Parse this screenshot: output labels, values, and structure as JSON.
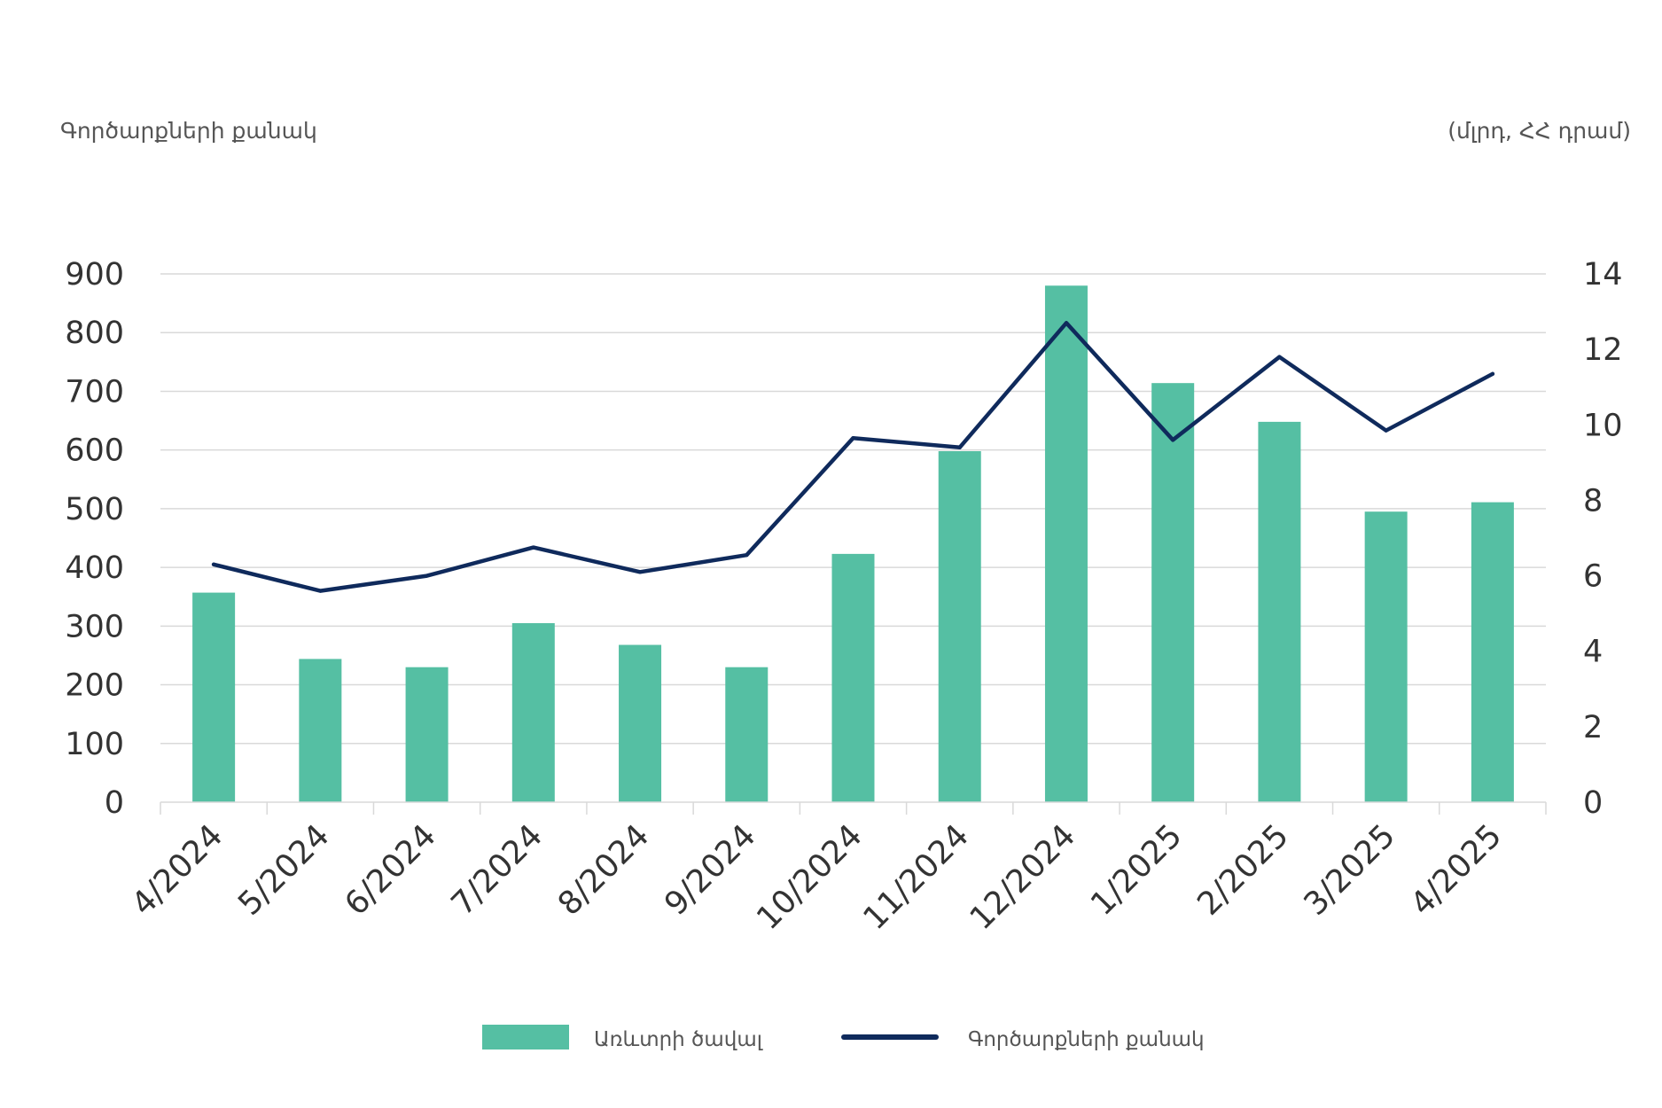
{
  "chart_data": {
    "type": "bar",
    "left_axis_caption": "Գործարքների քանակ",
    "right_axis_caption": "(մլրդ, ՀՀ դրամ)",
    "categories": [
      "4/2024",
      "5/2024",
      "6/2024",
      "7/2024",
      "8/2024",
      "9/2024",
      "10/2024",
      "11/2024",
      "12/2024",
      "1/2025",
      "2/2025",
      "3/2025",
      "4/2025"
    ],
    "series": [
      {
        "name": "Առևտրի ծավալ",
        "type": "bar",
        "axis": "left",
        "color": "#55bfa3",
        "values": [
          357,
          244,
          230,
          305,
          268,
          230,
          423,
          598,
          880,
          714,
          648,
          495,
          511
        ]
      },
      {
        "name": "Գործարքների քանակ",
        "type": "line",
        "axis": "right",
        "color": "#0f2a5c",
        "values": [
          6.3,
          5.6,
          6.0,
          6.75,
          6.1,
          6.55,
          9.65,
          9.4,
          12.7,
          9.6,
          11.8,
          9.85,
          11.35
        ]
      }
    ],
    "y_left": {
      "min": 0,
      "max": 900,
      "ticks": [
        0,
        100,
        200,
        300,
        400,
        500,
        600,
        700,
        800,
        900
      ]
    },
    "y_right": {
      "min": 0,
      "max": 14,
      "ticks": [
        0,
        2,
        4,
        6,
        8,
        10,
        12,
        14
      ]
    },
    "grid": true,
    "legend": "bottom"
  }
}
